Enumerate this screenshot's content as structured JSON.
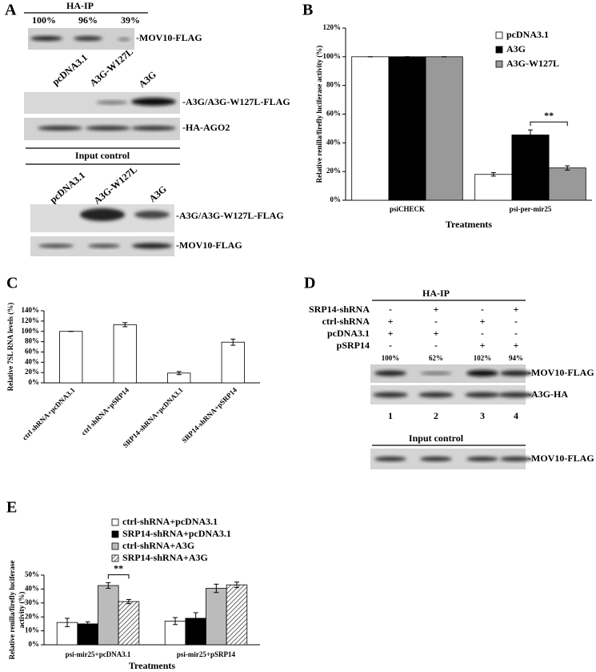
{
  "panel_a": {
    "label": "A",
    "ip_header": "HA-IP",
    "ip_percent": [
      "100%",
      "96%",
      "39%"
    ],
    "ip_blot_label": "-MOV10-FLAG",
    "lanes": [
      "pcDNA3.1",
      "A3G-W127L",
      "A3G"
    ],
    "blot_labels": [
      "-A3G/A3G-W127L-FLAG",
      "-HA-AGO2"
    ],
    "input_header": "Input control",
    "input_lanes": [
      "pcDNA3.1",
      "A3G-W127L",
      "A3G"
    ],
    "input_blot_labels": [
      "-A3G/A3G-W127L-FLAG",
      "-MOV10-FLAG"
    ]
  },
  "panel_d": {
    "label": "D",
    "ip_header": "HA-IP",
    "conditions": [
      {
        "name": "SRP14-shRNA",
        "signs": [
          "-",
          "+",
          "-",
          "+"
        ]
      },
      {
        "name": "ctrl-shRNA",
        "signs": [
          "+",
          "-",
          "+",
          "-"
        ]
      },
      {
        "name": "pcDNA3.1",
        "signs": [
          "+",
          "+",
          "-",
          "-"
        ]
      },
      {
        "name": "pSRP14",
        "signs": [
          "-",
          "-",
          "+",
          "+"
        ]
      }
    ],
    "percentages": [
      "100%",
      "62%",
      "102%",
      "94%"
    ],
    "blot_labels": [
      "-MOV10-FLAG",
      "-A3G-HA"
    ],
    "lane_numbers": [
      "1",
      "2",
      "3",
      "4"
    ],
    "input_header": "Input control",
    "input_blot_label": "-MOV10-FLAG"
  },
  "chart_data": [
    {
      "type": "bar",
      "panel": "B",
      "categories": [
        "psiCHECK",
        "psi-per-mir25"
      ],
      "series": [
        {
          "name": "pcDNA3.1",
          "color": "#ffffff",
          "values": [
            100,
            18
          ],
          "errors": [
            0,
            1.2
          ]
        },
        {
          "name": "A3G",
          "color": "#000000",
          "values": [
            100,
            45.5
          ],
          "errors": [
            0,
            3.5
          ]
        },
        {
          "name": "A3G-W127L",
          "color": "#999999",
          "values": [
            100,
            22.5
          ],
          "errors": [
            0,
            1.5
          ]
        }
      ],
      "ylim": [
        0,
        120
      ],
      "yticks": [
        {
          "value": 0,
          "label": "0%"
        },
        {
          "value": 20,
          "label": "20%"
        },
        {
          "value": 40,
          "label": "40%"
        },
        {
          "value": 60,
          "label": "60%"
        },
        {
          "value": 80,
          "label": "80%"
        },
        {
          "value": 100,
          "label": "100%"
        },
        {
          "value": 120,
          "label": "120%"
        }
      ],
      "ylabel": [
        "Relative renilla/firefly luciferase activity (%)"
      ],
      "xlabel": "Treatments",
      "annotation": "**",
      "legend": "top-right"
    },
    {
      "type": "bar",
      "panel": "C",
      "categories": [
        "ctrl shRNA+pcDNA3.1",
        "ctrl shRNA+pSRP14",
        "SRP14-shRNA+pcDNA3.1",
        "SRP14-shRNA+pSRP14"
      ],
      "values": [
        100,
        113,
        19,
        79
      ],
      "errors": [
        0,
        4,
        3,
        6
      ],
      "color": "#ffffff",
      "ylim": [
        0,
        140
      ],
      "yticks": [
        {
          "value": 0,
          "label": "0%"
        },
        {
          "value": 20,
          "label": "20%"
        },
        {
          "value": 40,
          "label": "40%"
        },
        {
          "value": 60,
          "label": "60%"
        },
        {
          "value": 80,
          "label": "80%"
        },
        {
          "value": 100,
          "label": "100%"
        },
        {
          "value": 120,
          "label": "120%"
        },
        {
          "value": 140,
          "label": "140%"
        }
      ],
      "ylabel": [
        "Relative 7SL RNA levels (%)"
      ]
    },
    {
      "type": "bar",
      "panel": "E",
      "categories": [
        "psi-mir25+pcDNA3.1",
        "psi-mir25+pSRP14"
      ],
      "series": [
        {
          "name": "ctrl-shRNA+pcDNA3.1",
          "color": "#ffffff",
          "values": [
            16,
            17
          ],
          "errors": [
            3,
            2.5
          ]
        },
        {
          "name": "SRP14-shRNA+pcDNA3.1",
          "color": "#000000",
          "values": [
            15,
            19
          ],
          "errors": [
            1.5,
            4
          ]
        },
        {
          "name": "ctrl-shRNA+A3G",
          "color": "#bbbbbb",
          "values": [
            42.5,
            40.5
          ],
          "errors": [
            2,
            3
          ]
        },
        {
          "name": "SRP14-shRNA+A3G",
          "color": "#bbbbbb",
          "pattern": "hatch",
          "values": [
            31,
            43
          ],
          "errors": [
            1.5,
            2
          ]
        }
      ],
      "ylim": [
        0,
        50
      ],
      "yticks": [
        {
          "value": 0,
          "label": "0%"
        },
        {
          "value": 10,
          "label": "10%"
        },
        {
          "value": 20,
          "label": "20%"
        },
        {
          "value": 30,
          "label": "30%"
        },
        {
          "value": 40,
          "label": "40%"
        },
        {
          "value": 50,
          "label": "50%"
        }
      ],
      "ylabel": [
        "Relative renilla/firefly luciferase",
        "activity (%)"
      ],
      "xlabel": "Treatments",
      "annotation": "**",
      "legend": "top"
    }
  ]
}
